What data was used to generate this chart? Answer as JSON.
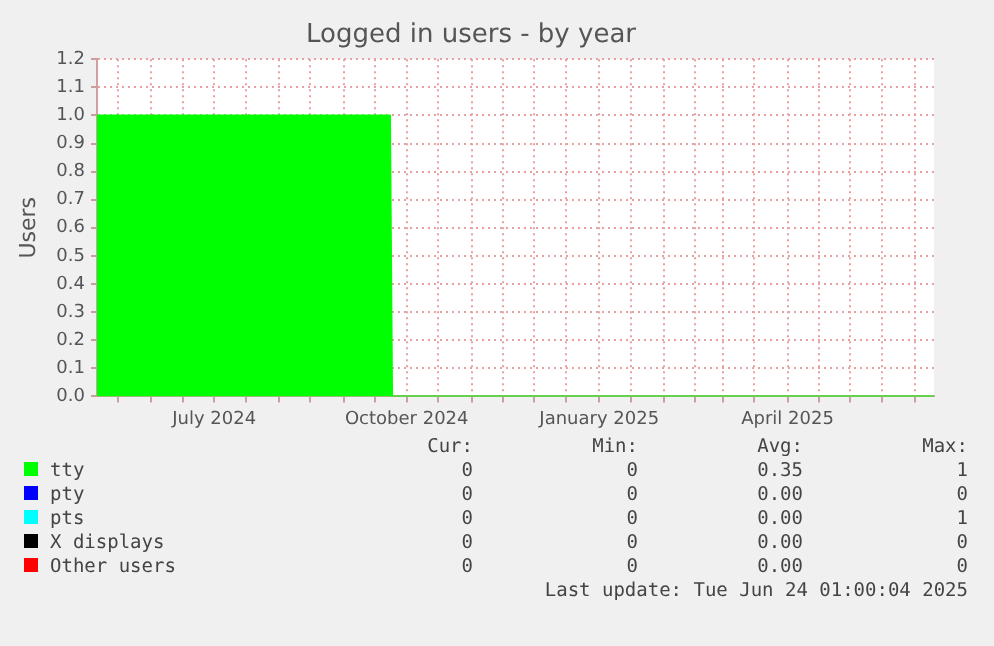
{
  "chart_data": {
    "type": "area",
    "title": "Logged in users - by year",
    "ylabel": "Users",
    "x": [
      "2024-05-06",
      "2024-09-23",
      "2024-09-24",
      "2025-06-10"
    ],
    "series": [
      {
        "name": "tty",
        "color": "#00ff00",
        "values": [
          1,
          1,
          0,
          0
        ]
      },
      {
        "name": "pty",
        "color": "#0000ff",
        "values": [
          null,
          null,
          null,
          null
        ]
      },
      {
        "name": "pts",
        "color": "#00ffff",
        "values": [
          null,
          null,
          null,
          null
        ]
      },
      {
        "name": "X displays",
        "color": "#000000",
        "values": [
          null,
          null,
          null,
          null
        ]
      },
      {
        "name": "Other users",
        "color": "#ff0000",
        "values": [
          null,
          null,
          null,
          null
        ]
      }
    ],
    "xlim": [
      "2024-05-06",
      "2025-06-10"
    ],
    "xticks": [
      {
        "value": "2024-05-16",
        "label": null
      },
      {
        "value": "2024-06-01",
        "label": null
      },
      {
        "value": "2024-06-16",
        "label": null
      },
      {
        "value": "2024-07-01",
        "label": "July 2024"
      },
      {
        "value": "2024-07-16",
        "label": null
      },
      {
        "value": "2024-08-01",
        "label": null
      },
      {
        "value": "2024-08-16",
        "label": null
      },
      {
        "value": "2024-09-01",
        "label": null
      },
      {
        "value": "2024-09-16",
        "label": null
      },
      {
        "value": "2024-10-01",
        "label": "October 2024"
      },
      {
        "value": "2024-10-16",
        "label": null
      },
      {
        "value": "2024-11-01",
        "label": null
      },
      {
        "value": "2024-11-16",
        "label": null
      },
      {
        "value": "2024-12-01",
        "label": null
      },
      {
        "value": "2024-12-16",
        "label": null
      },
      {
        "value": "2025-01-01",
        "label": "January 2025"
      },
      {
        "value": "2025-01-16",
        "label": null
      },
      {
        "value": "2025-02-01",
        "label": null
      },
      {
        "value": "2025-02-16",
        "label": null
      },
      {
        "value": "2025-03-01",
        "label": null
      },
      {
        "value": "2025-03-16",
        "label": null
      },
      {
        "value": "2025-04-01",
        "label": "April 2025"
      },
      {
        "value": "2025-04-16",
        "label": null
      },
      {
        "value": "2025-05-01",
        "label": null
      },
      {
        "value": "2025-05-16",
        "label": null
      },
      {
        "value": "2025-06-01",
        "label": null
      }
    ],
    "ylim": [
      0,
      1.2
    ],
    "yticks": [
      {
        "value": 0,
        "label": "0.0"
      },
      {
        "value": 0.1,
        "label": "0.1"
      },
      {
        "value": 0.2,
        "label": "0.2"
      },
      {
        "value": 0.3,
        "label": "0.3"
      },
      {
        "value": 0.4,
        "label": "0.4"
      },
      {
        "value": 0.5,
        "label": "0.5"
      },
      {
        "value": 0.6,
        "label": "0.6"
      },
      {
        "value": 0.7,
        "label": "0.7"
      },
      {
        "value": 0.8,
        "label": "0.8"
      },
      {
        "value": 0.9,
        "label": "0.9"
      },
      {
        "value": 1,
        "label": "1.0"
      },
      {
        "value": 1.1,
        "label": "1.1"
      },
      {
        "value": 1.2,
        "label": "1.2"
      }
    ],
    "grid": true,
    "legend": "bottom",
    "annotations": [
      "Cur:",
      "Min:",
      "Avg:",
      "Max:",
      "0",
      "0",
      "0.35",
      "1",
      "0",
      "0",
      "0.00",
      "0",
      "0",
      "0",
      "0.00",
      "1",
      "0",
      "0",
      "0.00",
      "0",
      "0",
      "0",
      "0.00",
      "0",
      "Last update: Tue Jun 24 01:00:04 2025"
    ]
  }
}
